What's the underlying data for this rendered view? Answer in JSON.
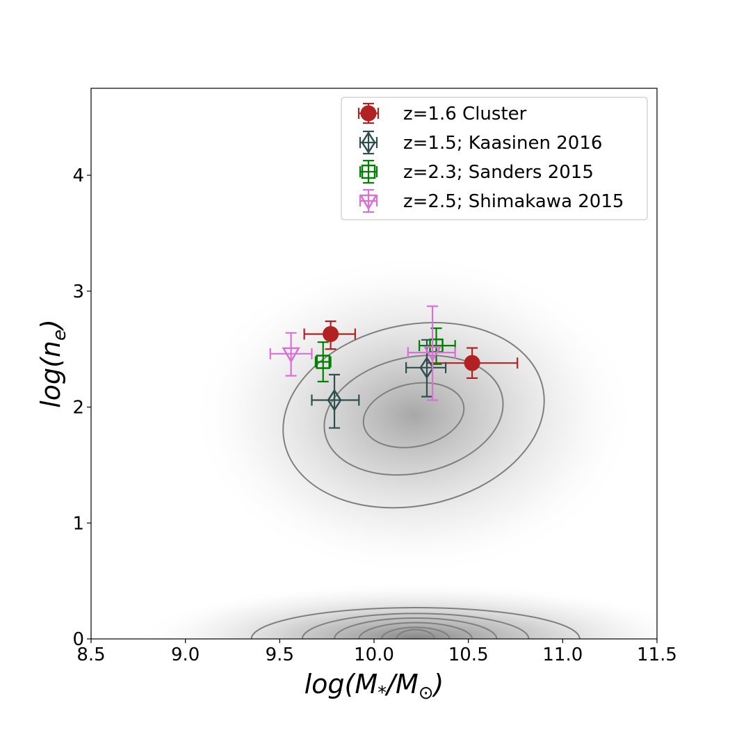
{
  "chart_data": {
    "type": "scatter",
    "xlabel_main": "log(M",
    "xlabel_sub1": "*",
    "xlabel_mid": "/M",
    "xlabel_sub2": "⊙",
    "xlabel_end": ")",
    "ylabel_main": "log(n",
    "ylabel_sub": "e",
    "ylabel_end": ")",
    "xlim": [
      8.5,
      11.5
    ],
    "ylim": [
      0,
      4.75
    ],
    "xticks": [
      8.5,
      9.0,
      9.5,
      10.0,
      10.5,
      11.0,
      11.5
    ],
    "xtick_labels": [
      "8.5",
      "9.0",
      "9.5",
      "10.0",
      "10.5",
      "11.0",
      "11.5"
    ],
    "yticks": [
      0,
      1,
      2,
      3,
      4
    ],
    "ytick_labels": [
      "0",
      "1",
      "2",
      "3",
      "4"
    ],
    "legend_position": "top-right",
    "series": [
      {
        "name": "z=1.6 Cluster",
        "marker": "circle",
        "color": "#b22222",
        "points": [
          {
            "x": 9.77,
            "y": 2.63,
            "xerr": [
              0.14,
              0.13
            ],
            "yerr": [
              0.13,
              0.11
            ]
          },
          {
            "x": 10.52,
            "y": 2.38,
            "xerr": [
              0.24,
              0.24
            ],
            "yerr": [
              0.13,
              0.13
            ]
          }
        ]
      },
      {
        "name": "z=1.5; Kaasinen 2016",
        "marker": "diamond",
        "color": "#2f4f4f",
        "points": [
          {
            "x": 9.79,
            "y": 2.06,
            "xerr": [
              0.12,
              0.13
            ],
            "yerr": [
              0.24,
              0.22
            ]
          },
          {
            "x": 10.28,
            "y": 2.34,
            "xerr": [
              0.11,
              0.1
            ],
            "yerr": [
              0.25,
              0.24
            ]
          }
        ]
      },
      {
        "name": "z=2.3; Sanders 2015",
        "marker": "square",
        "color": "#008000",
        "points": [
          {
            "x": 9.73,
            "y": 2.39,
            "xerr": [
              0.04,
              0.04
            ],
            "yerr": [
              0.17,
              0.17
            ]
          },
          {
            "x": 10.33,
            "y": 2.53,
            "xerr": [
              0.09,
              0.1
            ],
            "yerr": [
              0.16,
              0.15
            ]
          }
        ]
      },
      {
        "name": "z=2.5; Shimakawa 2015",
        "marker": "triangle-down",
        "color": "#da70d6",
        "points": [
          {
            "x": 9.56,
            "y": 2.46,
            "xerr": [
              0.11,
              0.11
            ],
            "yerr": [
              0.19,
              0.18
            ]
          },
          {
            "x": 10.31,
            "y": 2.47,
            "xerr": [
              0.13,
              0.12
            ],
            "yerr": [
              0.41,
              0.4
            ]
          }
        ]
      }
    ],
    "density_contours": [
      {
        "cx": 10.21,
        "cy": 1.93,
        "rx_levels": [
          0.27,
          0.48,
          0.7
        ],
        "ry_levels": [
          0.27,
          0.5,
          0.78
        ]
      },
      {
        "cx": 10.22,
        "cy": 0.0,
        "rx_levels": [
          0.1,
          0.18,
          0.3,
          0.43,
          0.6,
          0.87
        ],
        "ry_levels": [
          0.08,
          0.1,
          0.14,
          0.18,
          0.22,
          0.27
        ]
      }
    ]
  }
}
